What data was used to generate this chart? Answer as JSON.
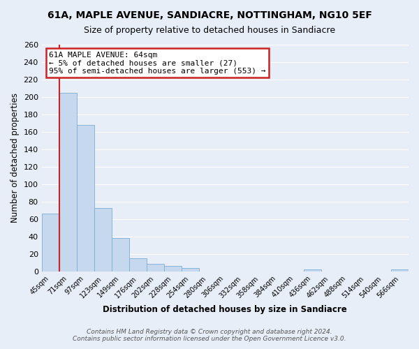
{
  "title": "61A, MAPLE AVENUE, SANDIACRE, NOTTINGHAM, NG10 5EF",
  "subtitle": "Size of property relative to detached houses in Sandiacre",
  "xlabel": "Distribution of detached houses by size in Sandiacre",
  "ylabel": "Number of detached properties",
  "footer_line1": "Contains HM Land Registry data © Crown copyright and database right 2024.",
  "footer_line2": "Contains public sector information licensed under the Open Government Licence v3.0.",
  "bar_labels": [
    "45sqm",
    "71sqm",
    "97sqm",
    "123sqm",
    "149sqm",
    "176sqm",
    "202sqm",
    "228sqm",
    "254sqm",
    "280sqm",
    "306sqm",
    "332sqm",
    "358sqm",
    "384sqm",
    "410sqm",
    "436sqm",
    "462sqm",
    "488sqm",
    "514sqm",
    "540sqm",
    "566sqm"
  ],
  "bar_values": [
    66,
    205,
    168,
    73,
    38,
    15,
    9,
    6,
    4,
    0,
    0,
    0,
    0,
    0,
    0,
    2,
    0,
    0,
    0,
    0,
    2
  ],
  "bar_color": "#c5d8ed",
  "bar_edge_color": "#7badd4",
  "highlight_color": "#cc2222",
  "ylim": [
    0,
    260
  ],
  "yticks": [
    0,
    20,
    40,
    60,
    80,
    100,
    120,
    140,
    160,
    180,
    200,
    220,
    240,
    260
  ],
  "annotation_text": "61A MAPLE AVENUE: 64sqm\n← 5% of detached houses are smaller (27)\n95% of semi-detached houses are larger (553) →",
  "annotation_box_color": "#ffffff",
  "annotation_border_color": "#cc2222",
  "bg_color": "#e8eef8",
  "grid_color": "#ffffff"
}
